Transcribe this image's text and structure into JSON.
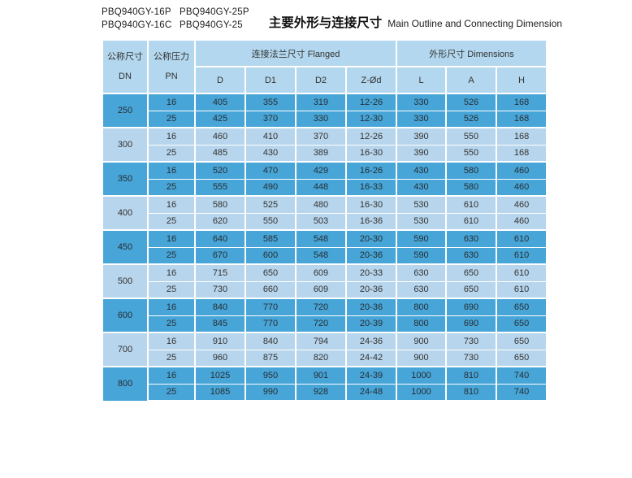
{
  "page": {
    "codes": {
      "row1": [
        "PBQ940GY-16P",
        "PBQ940GY-25P"
      ],
      "row2": [
        "PBQ940GY-16C",
        "PBQ940GY-25"
      ]
    },
    "title_zh": "主要外形与连接尺寸",
    "title_en": "Main Outline and Connecting Dimension"
  },
  "colors": {
    "row_dark": "#47a5d7",
    "row_light": "#b7d5ec",
    "header_bg": "#b3d7ee",
    "separator": "#ffffff",
    "text": "#333333"
  },
  "table": {
    "header": {
      "dn_zh": "公称尺寸",
      "dn_en": "DN",
      "pn_zh": "公称压力",
      "pn_en": "PN",
      "flanged_group": "连接法兰尺寸 Flanged",
      "dimensions_group": "外形尺寸 Dimensions",
      "subcolumns": [
        "D",
        "D1",
        "D2",
        "Z-Ød",
        "L",
        "A",
        "H"
      ]
    },
    "groups": [
      {
        "dn": "250",
        "rows": [
          [
            "16",
            "405",
            "355",
            "319",
            "12-26",
            "330",
            "526",
            "168"
          ],
          [
            "25",
            "425",
            "370",
            "330",
            "12-30",
            "330",
            "526",
            "168"
          ]
        ]
      },
      {
        "dn": "300",
        "rows": [
          [
            "16",
            "460",
            "410",
            "370",
            "12-26",
            "390",
            "550",
            "168"
          ],
          [
            "25",
            "485",
            "430",
            "389",
            "16-30",
            "390",
            "550",
            "168"
          ]
        ]
      },
      {
        "dn": "350",
        "rows": [
          [
            "16",
            "520",
            "470",
            "429",
            "16-26",
            "430",
            "580",
            "460"
          ],
          [
            "25",
            "555",
            "490",
            "448",
            "16-33",
            "430",
            "580",
            "460"
          ]
        ]
      },
      {
        "dn": "400",
        "rows": [
          [
            "16",
            "580",
            "525",
            "480",
            "16-30",
            "530",
            "610",
            "460"
          ],
          [
            "25",
            "620",
            "550",
            "503",
            "16-36",
            "530",
            "610",
            "460"
          ]
        ]
      },
      {
        "dn": "450",
        "rows": [
          [
            "16",
            "640",
            "585",
            "548",
            "20-30",
            "590",
            "630",
            "610"
          ],
          [
            "25",
            "670",
            "600",
            "548",
            "20-36",
            "590",
            "630",
            "610"
          ]
        ]
      },
      {
        "dn": "500",
        "rows": [
          [
            "16",
            "715",
            "650",
            "609",
            "20-33",
            "630",
            "650",
            "610"
          ],
          [
            "25",
            "730",
            "660",
            "609",
            "20-36",
            "630",
            "650",
            "610"
          ]
        ]
      },
      {
        "dn": "600",
        "rows": [
          [
            "16",
            "840",
            "770",
            "720",
            "20-36",
            "800",
            "690",
            "650"
          ],
          [
            "25",
            "845",
            "770",
            "720",
            "20-39",
            "800",
            "690",
            "650"
          ]
        ]
      },
      {
        "dn": "700",
        "rows": [
          [
            "16",
            "910",
            "840",
            "794",
            "24-36",
            "900",
            "730",
            "650"
          ],
          [
            "25",
            "960",
            "875",
            "820",
            "24-42",
            "900",
            "730",
            "650"
          ]
        ]
      },
      {
        "dn": "800",
        "rows": [
          [
            "16",
            "1025",
            "950",
            "901",
            "24-39",
            "1000",
            "810",
            "740"
          ],
          [
            "25",
            "1085",
            "990",
            "928",
            "24-48",
            "1000",
            "810",
            "740"
          ]
        ]
      }
    ]
  }
}
